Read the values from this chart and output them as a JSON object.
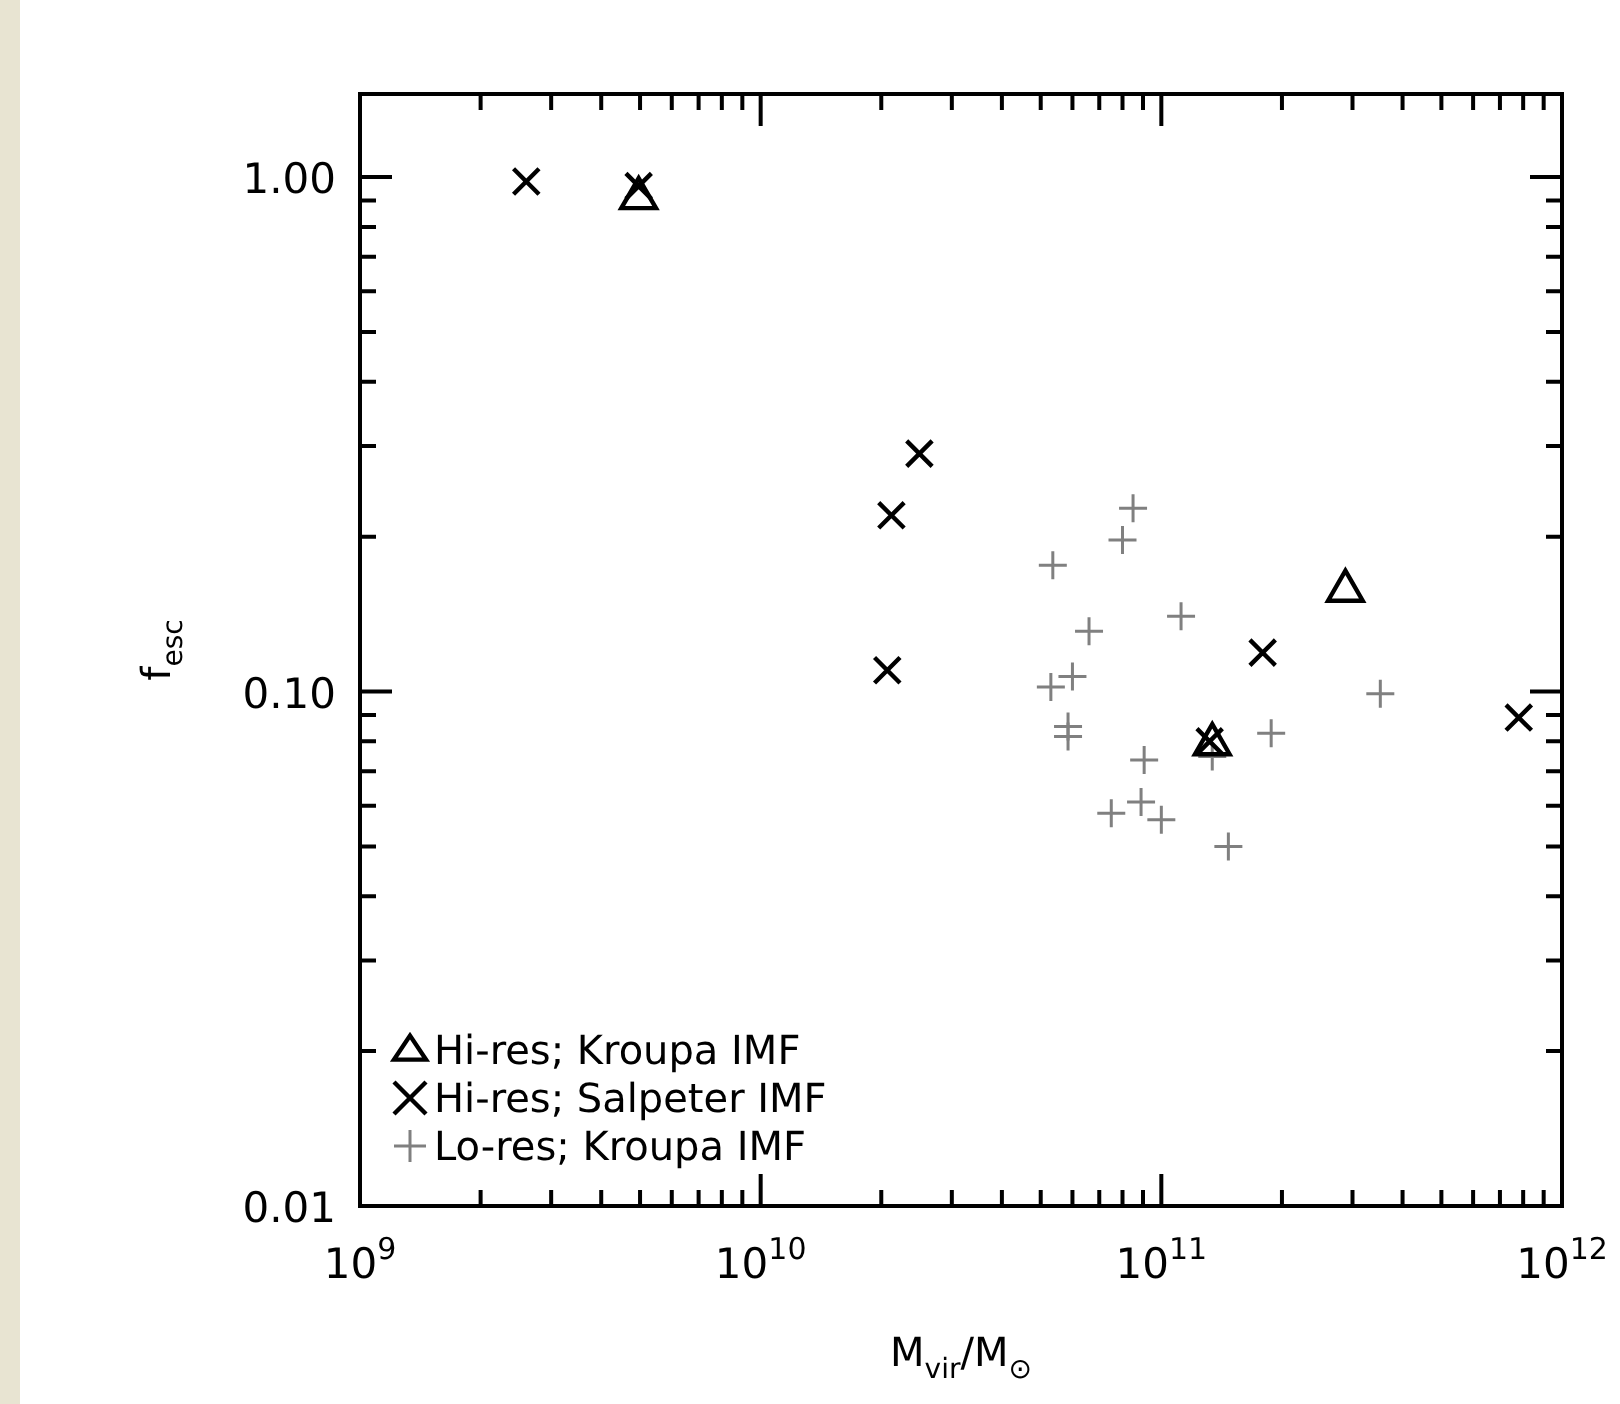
{
  "chart_data": {
    "type": "scatter",
    "xlabel": "M$_{vir}$/M$_{⊙}$",
    "ylabel": "f$_{esc}$",
    "log": "xy",
    "legend": "bottom left",
    "xlim": [
      1000000000.0,
      1000000000000.0
    ],
    "ylim": [
      0.01,
      1.45
    ],
    "xticks": [
      {
        "value": 1000000000.0,
        "label": "10$^{9}$"
      },
      {
        "value": 2000000000.0,
        "label": null
      },
      {
        "value": 3000000000.0,
        "label": null
      },
      {
        "value": 4000000000.0,
        "label": null
      },
      {
        "value": 5000000000.0,
        "label": null
      },
      {
        "value": 6000000000.0,
        "label": null
      },
      {
        "value": 7000000000.0,
        "label": null
      },
      {
        "value": 8000000000.0,
        "label": null
      },
      {
        "value": 9000000000.0,
        "label": null
      },
      {
        "value": 10000000000.0,
        "label": "10$^{10}$"
      },
      {
        "value": 20000000000.0,
        "label": null
      },
      {
        "value": 30000000000.0,
        "label": null
      },
      {
        "value": 40000000000.0,
        "label": null
      },
      {
        "value": 50000000000.0,
        "label": null
      },
      {
        "value": 60000000000.0,
        "label": null
      },
      {
        "value": 70000000000.0,
        "label": null
      },
      {
        "value": 80000000000.0,
        "label": null
      },
      {
        "value": 90000000000.0,
        "label": null
      },
      {
        "value": 100000000000.0,
        "label": "10$^{11}$"
      },
      {
        "value": 200000000000.0,
        "label": null
      },
      {
        "value": 300000000000.0,
        "label": null
      },
      {
        "value": 400000000000.0,
        "label": null
      },
      {
        "value": 500000000000.0,
        "label": null
      },
      {
        "value": 600000000000.0,
        "label": null
      },
      {
        "value": 700000000000.0,
        "label": null
      },
      {
        "value": 800000000000.0,
        "label": null
      },
      {
        "value": 900000000000.0,
        "label": null
      },
      {
        "value": 1000000000000.0,
        "label": "10$^{12}$"
      }
    ],
    "yticks": [
      {
        "value": 0.01,
        "label": "0.01"
      },
      {
        "value": 0.02,
        "label": null
      },
      {
        "value": 0.03,
        "label": null
      },
      {
        "value": 0.04,
        "label": null
      },
      {
        "value": 0.05,
        "label": null
      },
      {
        "value": 0.06,
        "label": null
      },
      {
        "value": 0.07,
        "label": null
      },
      {
        "value": 0.08,
        "label": null
      },
      {
        "value": 0.09,
        "label": null
      },
      {
        "value": 0.1,
        "label": "0.10"
      },
      {
        "value": 0.2,
        "label": null
      },
      {
        "value": 0.3,
        "label": null
      },
      {
        "value": 0.4,
        "label": null
      },
      {
        "value": 0.5,
        "label": null
      },
      {
        "value": 0.6,
        "label": null
      },
      {
        "value": 0.7,
        "label": null
      },
      {
        "value": 0.8,
        "label": null
      },
      {
        "value": 0.9,
        "label": null
      },
      {
        "value": 1,
        "label": "1.00"
      }
    ],
    "series": [
      {
        "name": "Hi-res; Kroupa IMF",
        "color": "#000000",
        "marker": "triangle",
        "x": [
          4960000000.0,
          288000000000.0,
          134000000000.0
        ],
        "values": [
          0.91,
          0.157,
          0.079
        ]
      },
      {
        "name": "Hi-res; Salpeter IMF",
        "color": "#000000",
        "marker": "cross",
        "x": [
          2600000000.0,
          4960000000.0,
          24900000000.0,
          21200000000.0,
          20700000000.0,
          179000000000.0,
          780000000000.0,
          132000000000.0
        ],
        "values": [
          0.98,
          0.96,
          0.29,
          0.22,
          0.11,
          0.119,
          0.089,
          0.08
        ]
      },
      {
        "name": "Lo-res; Kroupa IMF",
        "color": "#808080",
        "marker": "plus",
        "x": [
          85000000000.0,
          80000000000.0,
          53600000000.0,
          112000000000.0,
          66000000000.0,
          60000000000.0,
          53000000000.0,
          58500000000.0,
          58500000000.0,
          352000000000.0,
          188000000000.0,
          134000000000.0,
          90600000000.0,
          89000000000.0,
          75000000000.0,
          100000000000.0,
          147000000000.0
        ],
        "values": [
          0.227,
          0.197,
          0.176,
          0.14,
          0.131,
          0.107,
          0.102,
          0.0855,
          0.0818,
          0.099,
          0.083,
          0.0748,
          0.0736,
          0.061,
          0.058,
          0.0563,
          0.05
        ]
      }
    ]
  }
}
